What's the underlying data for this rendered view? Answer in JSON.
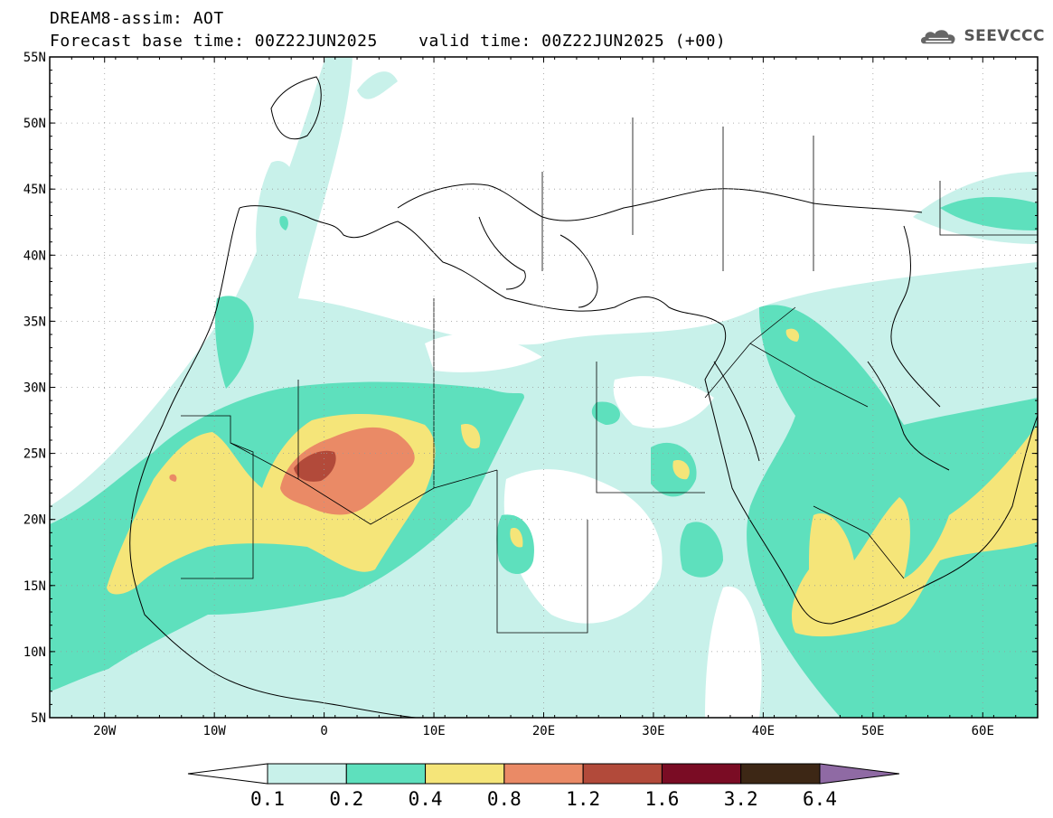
{
  "header": {
    "model_title": "DREAM8-assim: AOT",
    "base_time": "Forecast base time: 00Z22JUN2025",
    "valid_time": "valid time: 00Z22JUN2025 (+00)",
    "logo_text": "SEEVCCC",
    "logo_icon": "cloud-logo-icon"
  },
  "map": {
    "lat_labels": [
      "55N",
      "50N",
      "45N",
      "40N",
      "35N",
      "30N",
      "25N",
      "20N",
      "15N",
      "10N",
      "5N"
    ],
    "lon_labels": [
      "20W",
      "10W",
      "0",
      "10E",
      "20E",
      "30E",
      "40E",
      "50E",
      "60E"
    ],
    "lat_range": [
      5,
      55
    ],
    "lon_range": [
      -25,
      65
    ],
    "grid": "dotted"
  },
  "colorbar": {
    "labels": [
      "0.1",
      "0.2",
      "0.4",
      "0.8",
      "1.2",
      "1.6",
      "3.2",
      "6.4"
    ],
    "colors": [
      "#ffffff",
      "#c8f1ea",
      "#5ee0bd",
      "#f5e579",
      "#ea8a66",
      "#b24a3a",
      "#7a0c24",
      "#3d2715",
      "#8f6aa4"
    ]
  },
  "palette": {
    "c01": "#c8f1ea",
    "c02": "#5ee0bd",
    "c04": "#f5e579",
    "c08": "#ea8a66",
    "c12": "#b24a3a"
  }
}
